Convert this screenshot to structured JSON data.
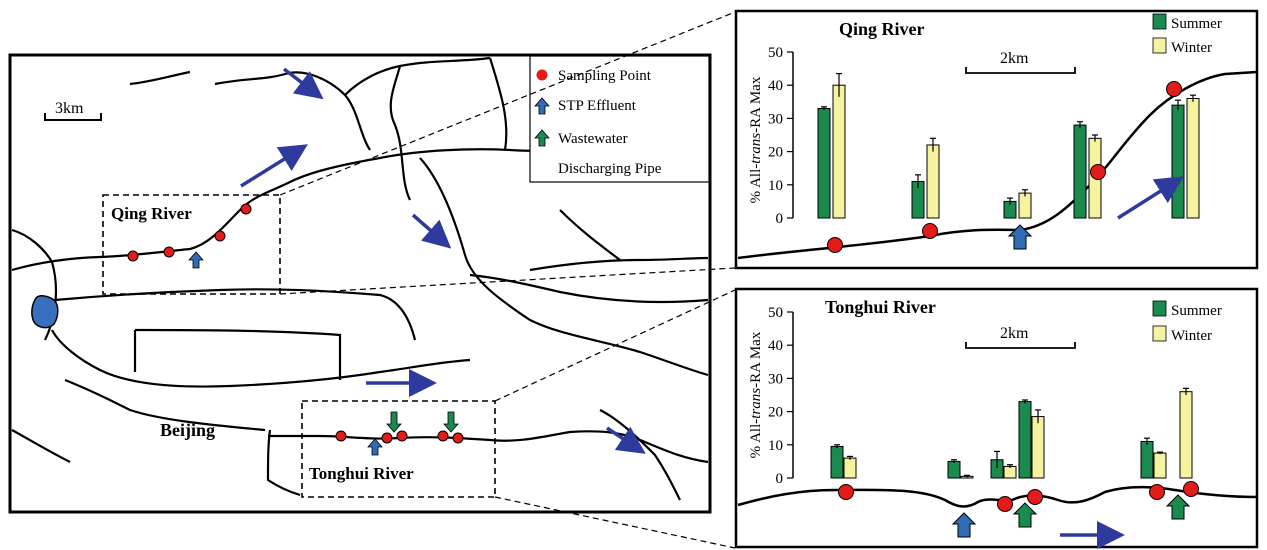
{
  "colors": {
    "summer": "#1a8a4e",
    "winter": "#f6f3a0",
    "sampling_point": "#e41b1b",
    "stp_arrow": "#2f6cb5",
    "flow_arrow": "#2e3a9e",
    "lake": "#3a6fbf"
  },
  "map": {
    "scale_label": "3km",
    "beijing_label": "Beijing",
    "qing_label": "Qing River",
    "tonghui_label": "Tonghui River",
    "legend": {
      "sampling_point": "Sampling Point",
      "stp_effluent": "STP Effluent",
      "wastewater_line1": "Wastewater",
      "wastewater_line2": "Discharging Pipe"
    }
  },
  "qing_panel": {
    "title": "Qing River",
    "scale_label": "2km",
    "legend_summer": "Summer",
    "legend_winter": "Winter",
    "ylabel_pre": "% All-",
    "ylabel_italic": "trans",
    "ylabel_post": "-RA Max",
    "yticks": [
      "0",
      "10",
      "20",
      "30",
      "40",
      "50"
    ]
  },
  "tonghui_panel": {
    "title": "Tonghui River",
    "scale_label": "2km",
    "legend_summer": "Summer",
    "legend_winter": "Winter",
    "ylabel_pre": "% All-",
    "ylabel_italic": "trans",
    "ylabel_post": "-RA Max",
    "yticks": [
      "0",
      "10",
      "20",
      "30",
      "40",
      "50"
    ]
  },
  "chart_data": [
    {
      "type": "bar",
      "title": "Qing River",
      "ylabel": "% All-trans-RA Max",
      "ylim": [
        0,
        50
      ],
      "series": [
        {
          "name": "Summer",
          "values": [
            33,
            11,
            5,
            28,
            34
          ],
          "errors": [
            0.5,
            2,
            1,
            1,
            1.5
          ]
        },
        {
          "name": "Winter",
          "values": [
            40,
            22,
            7.5,
            24,
            36
          ],
          "errors": [
            3.5,
            2,
            1,
            1,
            1
          ]
        }
      ]
    },
    {
      "type": "bar",
      "title": "Tonghui River",
      "ylabel": "% All-trans-RA Max",
      "ylim": [
        0,
        50
      ],
      "series": [
        {
          "name": "Summer",
          "values": [
            9.5,
            5,
            5.5,
            23,
            11
          ],
          "errors": [
            0.5,
            0.5,
            2.5,
            0.5,
            1
          ]
        },
        {
          "name": "Winter",
          "values": [
            6,
            0.5,
            3.5,
            18.5,
            7.5,
            26
          ],
          "errors": [
            0.5,
            0.3,
            0.5,
            2,
            0.3,
            1
          ]
        }
      ]
    }
  ]
}
